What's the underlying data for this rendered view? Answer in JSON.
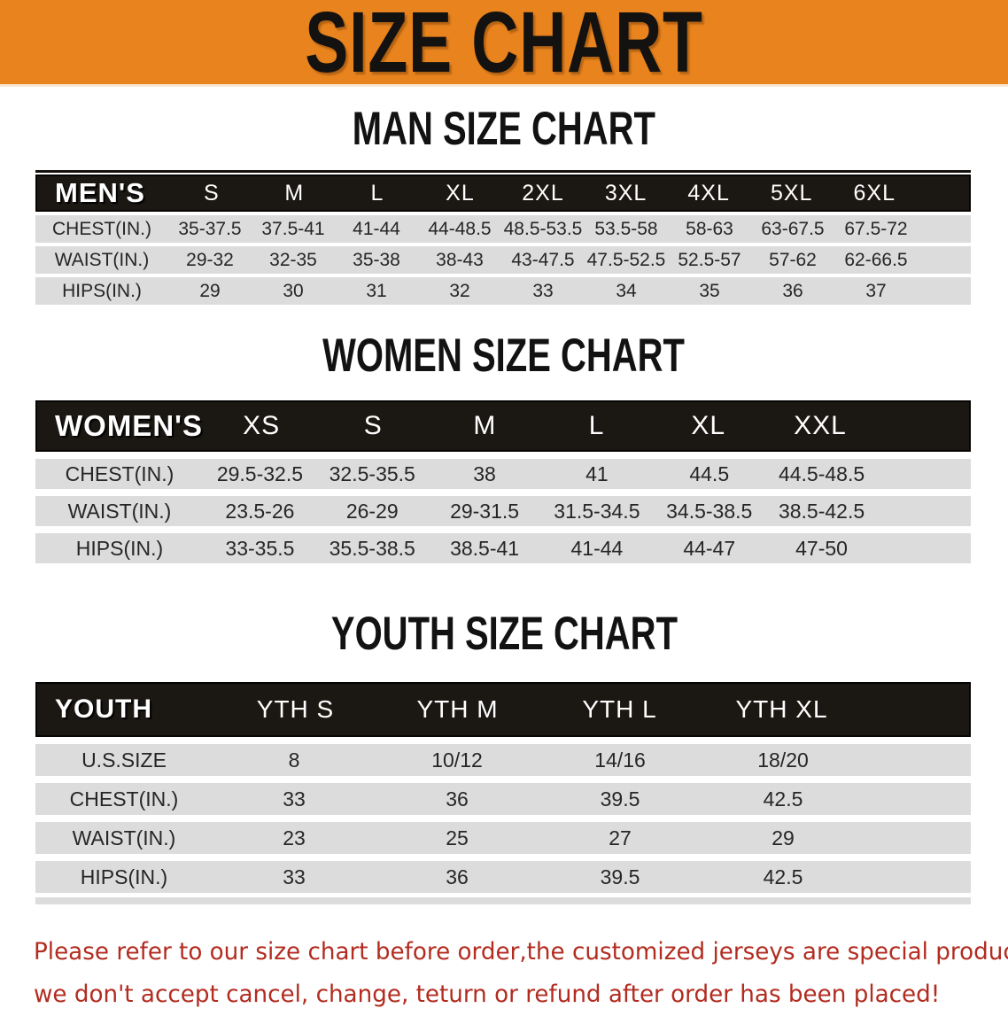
{
  "banner": {
    "title": "SIZE CHART"
  },
  "colors": {
    "banner_bg": "#e8831e",
    "header_bar_bg": "#1b1712",
    "row_stripe_gray": "#dcdcdc",
    "footer_red": "#b22c20"
  },
  "sections": [
    {
      "heading": "MAN SIZE CHART",
      "group_label": "MEN'S",
      "sizes": [
        "S",
        "M",
        "L",
        "XL",
        "2XL",
        "3XL",
        "4XL",
        "5XL",
        "6XL"
      ],
      "rows": [
        {
          "label": "CHEST(IN.)",
          "values": [
            "35-37.5",
            "37.5-41",
            "41-44",
            "44-48.5",
            "48.5-53.5",
            "53.5-58",
            "58-63",
            "63-67.5",
            "67.5-72"
          ]
        },
        {
          "label": "WAIST(IN.)",
          "values": [
            "29-32",
            "32-35",
            "35-38",
            "38-43",
            "43-47.5",
            "47.5-52.5",
            "52.5-57",
            "57-62",
            "62-66.5"
          ]
        },
        {
          "label": "HIPS(IN.)",
          "values": [
            "29",
            "30",
            "31",
            "32",
            "33",
            "34",
            "35",
            "36",
            "37"
          ]
        }
      ]
    },
    {
      "heading": "WOMEN SIZE CHART",
      "group_label": "WOMEN'S",
      "sizes": [
        "XS",
        "S",
        "M",
        "L",
        "XL",
        "XXL"
      ],
      "rows": [
        {
          "label": "CHEST(IN.)",
          "values": [
            "29.5-32.5",
            "32.5-35.5",
            "38",
            "41",
            "44.5",
            "44.5-48.5"
          ]
        },
        {
          "label": "WAIST(IN.)",
          "values": [
            "23.5-26",
            "26-29",
            "29-31.5",
            "31.5-34.5",
            "34.5-38.5",
            "38.5-42.5"
          ]
        },
        {
          "label": "HIPS(IN.)",
          "values": [
            "33-35.5",
            "35.5-38.5",
            "38.5-41",
            "41-44",
            "44-47",
            "47-50"
          ]
        }
      ]
    },
    {
      "heading": "YOUTH SIZE CHART",
      "group_label": "YOUTH",
      "sizes": [
        "YTH S",
        "YTH M",
        "YTH L",
        "YTH XL"
      ],
      "rows": [
        {
          "label": "U.S.SIZE",
          "values": [
            "8",
            "10/12",
            "14/16",
            "18/20"
          ]
        },
        {
          "label": "CHEST(IN.)",
          "values": [
            "33",
            "36",
            "39.5",
            "42.5"
          ]
        },
        {
          "label": "WAIST(IN.)",
          "values": [
            "23",
            "25",
            "27",
            "29"
          ]
        },
        {
          "label": "HIPS(IN.)",
          "values": [
            "33",
            "36",
            "39.5",
            "42.5"
          ]
        }
      ]
    }
  ],
  "footer": {
    "line1": "Please refer to our size chart before order,the customized jerseys are special products,",
    "line2": "we don't accept cancel, change, teturn or refund after order has been placed!"
  }
}
